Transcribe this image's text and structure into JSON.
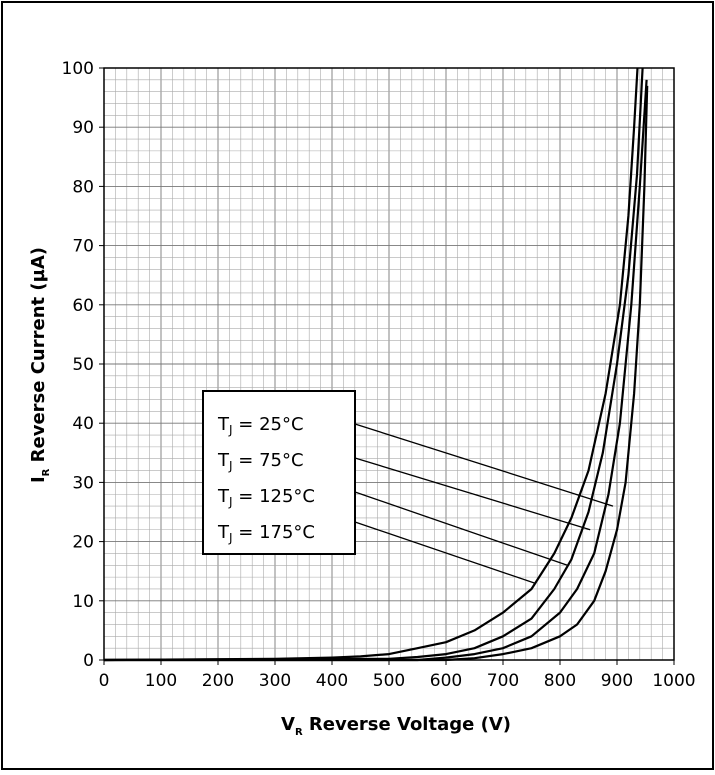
{
  "chart_data": {
    "type": "line",
    "title": "",
    "xlabel": {
      "main": "V",
      "sub": "R",
      "rest": " Reverse Voltage (V)"
    },
    "ylabel": {
      "main": "I",
      "sub": "R",
      "rest": " Reverse Current (µA)"
    },
    "xlim": [
      0,
      1000
    ],
    "ylim": [
      0,
      100
    ],
    "xticks": [
      0,
      100,
      200,
      300,
      400,
      500,
      600,
      700,
      800,
      900,
      1000
    ],
    "yticks": [
      0,
      10,
      20,
      30,
      40,
      50,
      60,
      70,
      80,
      90,
      100
    ],
    "grid": true,
    "legend_position": "center-left",
    "line_color": "#000000",
    "series": [
      {
        "name": "TJ = 25°C",
        "label_text": "T\u0004 = 25°C",
        "points": [
          [
            0,
            0
          ],
          [
            600,
            0
          ],
          [
            650,
            0.3
          ],
          [
            700,
            1
          ],
          [
            750,
            2
          ],
          [
            800,
            4
          ],
          [
            830,
            6
          ],
          [
            860,
            10
          ],
          [
            880,
            15
          ],
          [
            900,
            22
          ],
          [
            915,
            30
          ],
          [
            930,
            45
          ],
          [
            940,
            60
          ],
          [
            948,
            80
          ],
          [
            953,
            97
          ]
        ]
      },
      {
        "name": "TJ = 75°C",
        "label_text": "T\u0004 = 75°C",
        "points": [
          [
            0,
            0
          ],
          [
            550,
            0
          ],
          [
            600,
            0.4
          ],
          [
            650,
            1
          ],
          [
            700,
            2
          ],
          [
            750,
            4
          ],
          [
            800,
            8
          ],
          [
            830,
            12
          ],
          [
            860,
            18
          ],
          [
            885,
            28
          ],
          [
            905,
            40
          ],
          [
            925,
            60
          ],
          [
            940,
            80
          ],
          [
            952,
            98
          ]
        ]
      },
      {
        "name": "TJ = 125°C",
        "label_text": "T\u0004 = 125°C",
        "points": [
          [
            0,
            0
          ],
          [
            500,
            0.2
          ],
          [
            550,
            0.5
          ],
          [
            600,
            1
          ],
          [
            650,
            2
          ],
          [
            700,
            4
          ],
          [
            750,
            7
          ],
          [
            790,
            12
          ],
          [
            820,
            17
          ],
          [
            850,
            25
          ],
          [
            875,
            35
          ],
          [
            900,
            50
          ],
          [
            920,
            65
          ],
          [
            935,
            82
          ],
          [
            945,
            100
          ]
        ]
      },
      {
        "name": "TJ = 175°C",
        "label_text": "T\u0004 = 175°C",
        "points": [
          [
            0,
            0
          ],
          [
            300,
            0.2
          ],
          [
            400,
            0.4
          ],
          [
            450,
            0.6
          ],
          [
            500,
            1
          ],
          [
            550,
            2
          ],
          [
            600,
            3
          ],
          [
            650,
            5
          ],
          [
            700,
            8
          ],
          [
            750,
            12
          ],
          [
            790,
            18
          ],
          [
            820,
            24
          ],
          [
            850,
            32
          ],
          [
            880,
            45
          ],
          [
            905,
            60
          ],
          [
            920,
            75
          ],
          [
            930,
            90
          ],
          [
            936,
            100
          ]
        ]
      }
    ],
    "legend_pointers": [
      {
        "series": "TJ = 25°C",
        "target": [
          893,
          26
        ]
      },
      {
        "series": "TJ = 75°C",
        "target": [
          853,
          22
        ]
      },
      {
        "series": "TJ = 125°C",
        "target": [
          813,
          16
        ]
      },
      {
        "series": "TJ = 175°C",
        "target": [
          755,
          13
        ]
      }
    ]
  },
  "legend_subscript": "J",
  "legend_label_lines": [
    "T",
    " = 25°C",
    " = 75°C",
    " = 125°C",
    " = 175°C"
  ]
}
